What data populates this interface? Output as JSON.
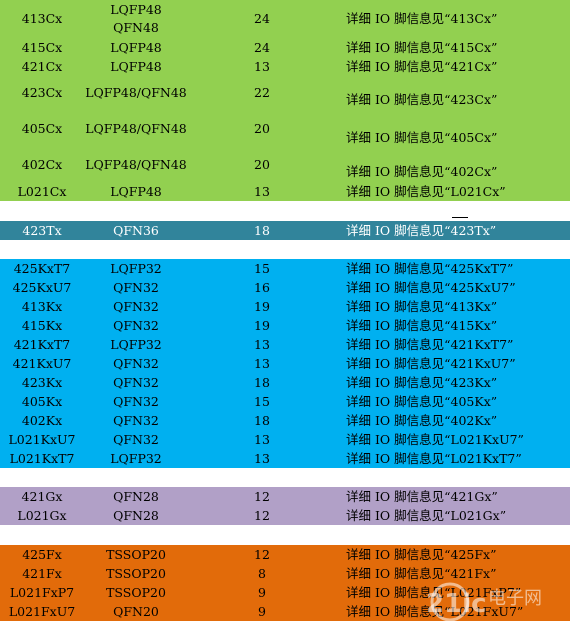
{
  "groups": [
    {
      "name": "green",
      "color": "#92d050",
      "rows": [
        {
          "model": "413Cx",
          "pkg": [
            "LQFP48",
            "QFN48"
          ],
          "pins": "24",
          "desc": "详细 IO 脚信息见“413Cx”"
        },
        {
          "model": "415Cx",
          "pkg": [
            "LQFP48"
          ],
          "pins": "24",
          "desc": "详细 IO 脚信息见“415Cx”"
        },
        {
          "model": "421Cx",
          "pkg": [
            "LQFP48"
          ],
          "pins": "13",
          "desc": "详细 IO 脚信息见“421Cx”"
        },
        {
          "model": "423Cx",
          "pkg": [
            "LQFP48/QFN48"
          ],
          "pins": "22",
          "desc": "详细 IO 脚信息见“423Cx”"
        },
        {
          "model": "405Cx",
          "pkg": [
            "LQFP48/QFN48"
          ],
          "pins": "20",
          "desc": "详细 IO 脚信息见“405Cx”"
        },
        {
          "model": "402Cx",
          "pkg": [
            "LQFP48/QFN48"
          ],
          "pins": "20",
          "desc": "详细 IO 脚信息见“402Cx”"
        },
        {
          "model": "L021Cx",
          "pkg": [
            "LQFP48"
          ],
          "pins": "13",
          "desc": "详细 IO 脚信息见“L021Cx”"
        }
      ]
    },
    {
      "name": "teal",
      "color": "#31849b",
      "rows": [
        {
          "model": "423Tx",
          "pkg": [
            "QFN36"
          ],
          "pins": "18",
          "desc": "详细 IO 脚信息见“423Tx”"
        }
      ]
    },
    {
      "name": "blue",
      "color": "#00b0f0",
      "rows": [
        {
          "model": "425KxT7",
          "pkg": [
            "LQFP32"
          ],
          "pins": "15",
          "desc": "详细 IO 脚信息见“425KxT7”"
        },
        {
          "model": "425KxU7",
          "pkg": [
            "QFN32"
          ],
          "pins": "16",
          "desc": "详细 IO 脚信息见“425KxU7”"
        },
        {
          "model": "413Kx",
          "pkg": [
            "QFN32"
          ],
          "pins": "19",
          "desc": "详细 IO 脚信息见“413Kx”"
        },
        {
          "model": "415Kx",
          "pkg": [
            "QFN32"
          ],
          "pins": "19",
          "desc": "详细 IO 脚信息见“415Kx”"
        },
        {
          "model": "421KxT7",
          "pkg": [
            "LQFP32"
          ],
          "pins": "13",
          "desc": "详细 IO 脚信息见“421KxT7”"
        },
        {
          "model": "421KxU7",
          "pkg": [
            "QFN32"
          ],
          "pins": "13",
          "desc": "详细 IO 脚信息见“421KxU7”"
        },
        {
          "model": "423Kx",
          "pkg": [
            "QFN32"
          ],
          "pins": "18",
          "desc": "详细 IO 脚信息见“423Kx”"
        },
        {
          "model": "405Kx",
          "pkg": [
            "QFN32"
          ],
          "pins": "15",
          "desc": "详细 IO 脚信息见“405Kx”"
        },
        {
          "model": "402Kx",
          "pkg": [
            "QFN32"
          ],
          "pins": "18",
          "desc": "详细 IO 脚信息见“402Kx”"
        },
        {
          "model": "L021KxU7",
          "pkg": [
            "QFN32"
          ],
          "pins": "13",
          "desc": "详细 IO 脚信息见“L021KxU7”"
        },
        {
          "model": "L021KxT7",
          "pkg": [
            "LQFP32"
          ],
          "pins": "13",
          "desc": "详细 IO 脚信息见“L021KxT7”"
        }
      ]
    },
    {
      "name": "purple",
      "color": "#b1a0c7",
      "rows": [
        {
          "model": "421Gx",
          "pkg": [
            "QFN28"
          ],
          "pins": "12",
          "desc": "详细 IO 脚信息见“421Gx”"
        },
        {
          "model": "L021Gx",
          "pkg": [
            "QFN28"
          ],
          "pins": "12",
          "desc": "详细 IO 脚信息见“L021Gx”"
        }
      ]
    },
    {
      "name": "orange",
      "color": "#e26b0a",
      "rows": [
        {
          "model": "425Fx",
          "pkg": [
            "TSSOP20"
          ],
          "pins": "12",
          "desc": "详细 IO 脚信息见“425Fx”"
        },
        {
          "model": "421Fx",
          "pkg": [
            "TSSOP20"
          ],
          "pins": "8",
          "desc": "详细 IO 脚信息见“421Fx”"
        },
        {
          "model": "L021FxP7",
          "pkg": [
            "TSSOP20"
          ],
          "pins": "9",
          "desc": "详细 IO 脚信息见“L021FxP7”"
        },
        {
          "model": "L021FxU7",
          "pkg": [
            "QFN20"
          ],
          "pins": "9",
          "desc": "详细 IO 脚信息见“L021FxU7”"
        }
      ]
    }
  ],
  "watermark": {
    "logo_text": "21ic",
    "site_text": "电子网"
  }
}
